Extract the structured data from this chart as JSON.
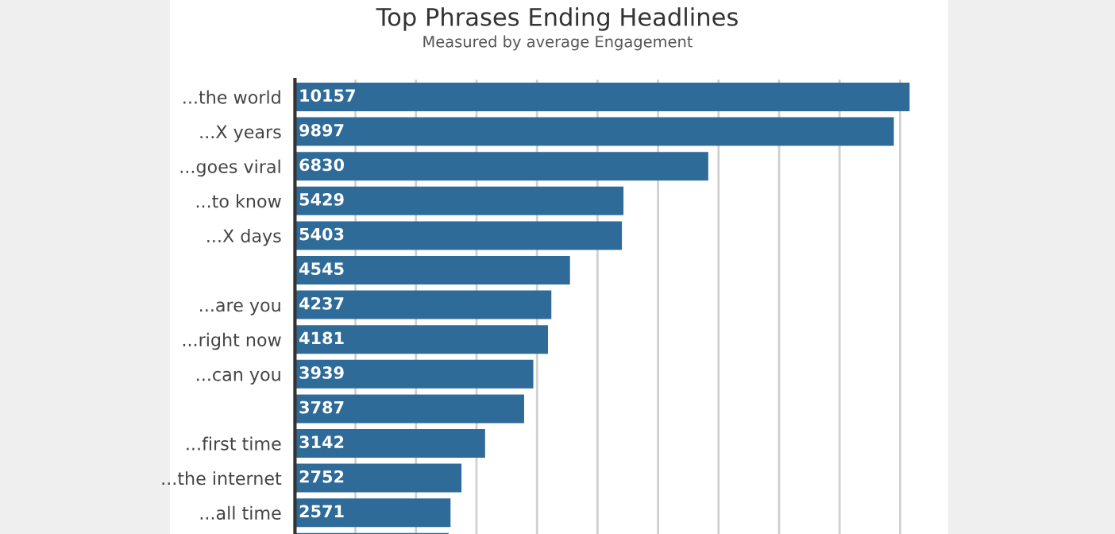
{
  "chart_data": {
    "type": "bar",
    "orientation": "horizontal",
    "title": "Top Phrases Ending Headlines",
    "subtitle": "Measured by average Engagement",
    "categories": [
      "...the world",
      "...X years",
      "...goes viral",
      "...to know",
      "...X days",
      null,
      "...are you",
      "...right now",
      "...can you",
      null,
      "...first time",
      "...the internet",
      "...all time",
      null
    ],
    "values": [
      10157,
      9897,
      6830,
      5429,
      5403,
      4545,
      4237,
      4181,
      3939,
      3787,
      3142,
      2752,
      2571,
      2540
    ],
    "value_labels": [
      "10157",
      "9897",
      "6830",
      "5429",
      "5403",
      "4545",
      "4237",
      "4181",
      "3939",
      "3787",
      "3142",
      "2752",
      "2571",
      null
    ],
    "color": "#2f6b99",
    "xlim": [
      0,
      10200
    ],
    "xticks": [
      {
        "value": 1000,
        "label": null
      },
      {
        "value": 2000,
        "label": null
      },
      {
        "value": 3000,
        "label": null
      },
      {
        "value": 4000,
        "label": null
      },
      {
        "value": 5000,
        "label": null
      },
      {
        "value": 6000,
        "label": null
      },
      {
        "value": 7000,
        "label": null
      },
      {
        "value": 8000,
        "label": null
      },
      {
        "value": 9000,
        "label": null
      },
      {
        "value": 10000,
        "label": null
      }
    ],
    "grid": "x",
    "tick_labels": "y"
  }
}
